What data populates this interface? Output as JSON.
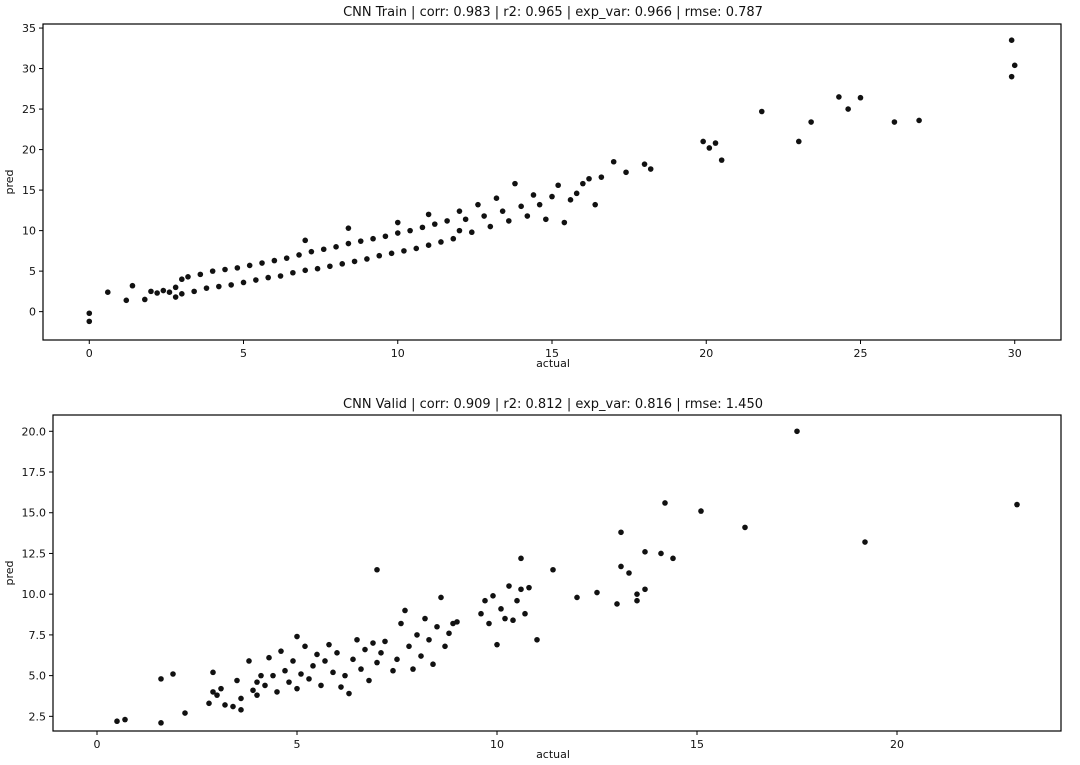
{
  "chart_data": [
    {
      "type": "scatter",
      "title": "CNN Train | corr: 0.983 | r2: 0.965 | exp_var: 0.966 | rmse: 0.787",
      "xlabel": "actual",
      "ylabel": "pred",
      "xlim": [
        -1.5,
        31.5
      ],
      "ylim": [
        -3.5,
        35.5
      ],
      "xticks": [
        0,
        5,
        10,
        15,
        20,
        25,
        30
      ],
      "yticks": [
        0,
        5,
        10,
        15,
        20,
        25,
        30,
        35
      ],
      "ytick_format": 0,
      "grid": false,
      "points": [
        [
          0,
          -1.2
        ],
        [
          0,
          -0.2
        ],
        [
          0.6,
          2.4
        ],
        [
          1.2,
          1.4
        ],
        [
          1.4,
          3.2
        ],
        [
          1.8,
          1.5
        ],
        [
          2.0,
          2.5
        ],
        [
          2.2,
          2.3
        ],
        [
          2.4,
          2.6
        ],
        [
          2.6,
          2.4
        ],
        [
          2.8,
          1.8
        ],
        [
          2.8,
          3.0
        ],
        [
          3.0,
          4.0
        ],
        [
          3.2,
          4.3
        ],
        [
          3.0,
          2.2
        ],
        [
          3.4,
          2.5
        ],
        [
          3.6,
          4.6
        ],
        [
          3.8,
          2.9
        ],
        [
          4.0,
          5.0
        ],
        [
          4.2,
          3.1
        ],
        [
          4.4,
          5.2
        ],
        [
          4.6,
          3.3
        ],
        [
          4.8,
          5.4
        ],
        [
          5.0,
          3.6
        ],
        [
          5.2,
          5.7
        ],
        [
          5.4,
          3.9
        ],
        [
          5.6,
          6.0
        ],
        [
          5.8,
          4.2
        ],
        [
          6.0,
          6.3
        ],
        [
          6.2,
          4.4
        ],
        [
          6.4,
          6.6
        ],
        [
          6.6,
          4.8
        ],
        [
          6.8,
          7.0
        ],
        [
          7.0,
          5.1
        ],
        [
          7.2,
          7.4
        ],
        [
          7.0,
          8.8
        ],
        [
          7.4,
          5.3
        ],
        [
          7.6,
          7.7
        ],
        [
          7.8,
          5.6
        ],
        [
          8.0,
          8.0
        ],
        [
          8.2,
          5.9
        ],
        [
          8.4,
          8.4
        ],
        [
          8.6,
          6.2
        ],
        [
          8.4,
          10.3
        ],
        [
          8.8,
          8.7
        ],
        [
          9.0,
          6.5
        ],
        [
          9.2,
          9.0
        ],
        [
          9.4,
          6.9
        ],
        [
          9.6,
          9.3
        ],
        [
          9.8,
          7.2
        ],
        [
          10.0,
          9.7
        ],
        [
          10.0,
          11.0
        ],
        [
          10.2,
          7.5
        ],
        [
          10.4,
          10.0
        ],
        [
          10.6,
          7.8
        ],
        [
          10.8,
          10.4
        ],
        [
          11.0,
          8.2
        ],
        [
          11.0,
          12.0
        ],
        [
          11.2,
          10.8
        ],
        [
          11.4,
          8.6
        ],
        [
          11.6,
          11.2
        ],
        [
          11.8,
          9.0
        ],
        [
          12.0,
          12.4
        ],
        [
          12.0,
          10.0
        ],
        [
          12.2,
          11.4
        ],
        [
          12.4,
          9.8
        ],
        [
          12.6,
          13.2
        ],
        [
          12.8,
          11.8
        ],
        [
          13.0,
          10.5
        ],
        [
          13.2,
          14.0
        ],
        [
          13.4,
          12.4
        ],
        [
          13.6,
          11.2
        ],
        [
          13.8,
          15.8
        ],
        [
          14.0,
          13.0
        ],
        [
          14.2,
          11.8
        ],
        [
          14.4,
          14.4
        ],
        [
          14.6,
          13.2
        ],
        [
          14.8,
          11.4
        ],
        [
          15.0,
          14.2
        ],
        [
          15.2,
          15.6
        ],
        [
          15.4,
          11.0
        ],
        [
          15.6,
          13.8
        ],
        [
          15.8,
          14.6
        ],
        [
          16.0,
          15.8
        ],
        [
          16.2,
          16.4
        ],
        [
          16.4,
          13.2
        ],
        [
          16.6,
          16.6
        ],
        [
          17.0,
          18.5
        ],
        [
          17.4,
          17.2
        ],
        [
          18.0,
          18.2
        ],
        [
          18.2,
          17.6
        ],
        [
          19.9,
          21.0
        ],
        [
          20.1,
          20.2
        ],
        [
          20.3,
          20.8
        ],
        [
          20.5,
          18.7
        ],
        [
          21.8,
          24.7
        ],
        [
          23.0,
          21.0
        ],
        [
          23.4,
          23.4
        ],
        [
          24.3,
          26.5
        ],
        [
          24.6,
          25.0
        ],
        [
          25.0,
          26.4
        ],
        [
          26.1,
          23.4
        ],
        [
          26.9,
          23.6
        ],
        [
          29.9,
          29.0
        ],
        [
          30.0,
          30.4
        ],
        [
          29.9,
          33.5
        ]
      ]
    },
    {
      "type": "scatter",
      "title": "CNN Valid | corr: 0.909 | r2: 0.812 | exp_var: 0.816 | rmse: 1.450",
      "xlabel": "actual",
      "ylabel": "pred",
      "xlim": [
        -1.1,
        24.1
      ],
      "ylim": [
        1.6,
        21.0
      ],
      "xticks": [
        0,
        5,
        10,
        15,
        20
      ],
      "yticks": [
        2.5,
        5.0,
        7.5,
        10.0,
        12.5,
        15.0,
        17.5,
        20.0
      ],
      "ytick_format": 1,
      "grid": false,
      "points": [
        [
          0.5,
          2.2
        ],
        [
          0.7,
          2.3
        ],
        [
          1.6,
          2.1
        ],
        [
          1.6,
          4.8
        ],
        [
          1.9,
          5.1
        ],
        [
          2.2,
          2.7
        ],
        [
          2.8,
          3.3
        ],
        [
          2.9,
          4.0
        ],
        [
          2.9,
          5.2
        ],
        [
          3.0,
          3.8
        ],
        [
          3.1,
          4.2
        ],
        [
          3.2,
          3.2
        ],
        [
          3.4,
          3.1
        ],
        [
          3.5,
          4.7
        ],
        [
          3.6,
          3.6
        ],
        [
          3.6,
          2.9
        ],
        [
          3.8,
          5.9
        ],
        [
          3.9,
          4.1
        ],
        [
          4.0,
          4.6
        ],
        [
          4.0,
          3.8
        ],
        [
          4.1,
          5.0
        ],
        [
          4.2,
          4.4
        ],
        [
          4.3,
          6.1
        ],
        [
          4.4,
          5.0
        ],
        [
          4.5,
          4.0
        ],
        [
          4.6,
          6.5
        ],
        [
          4.7,
          5.3
        ],
        [
          4.8,
          4.6
        ],
        [
          4.9,
          5.9
        ],
        [
          5.0,
          4.2
        ],
        [
          5.0,
          7.4
        ],
        [
          5.1,
          5.1
        ],
        [
          5.2,
          6.8
        ],
        [
          5.3,
          4.8
        ],
        [
          5.4,
          5.6
        ],
        [
          5.5,
          6.3
        ],
        [
          5.6,
          4.4
        ],
        [
          5.7,
          5.9
        ],
        [
          5.8,
          6.9
        ],
        [
          5.9,
          5.2
        ],
        [
          6.0,
          6.4
        ],
        [
          6.1,
          4.3
        ],
        [
          6.2,
          5.0
        ],
        [
          6.3,
          3.9
        ],
        [
          6.4,
          6.0
        ],
        [
          6.5,
          7.2
        ],
        [
          6.6,
          5.4
        ],
        [
          6.7,
          6.6
        ],
        [
          6.8,
          4.7
        ],
        [
          6.9,
          7.0
        ],
        [
          7.0,
          11.5
        ],
        [
          7.0,
          5.8
        ],
        [
          7.1,
          6.4
        ],
        [
          7.2,
          7.1
        ],
        [
          7.4,
          5.3
        ],
        [
          7.5,
          6.0
        ],
        [
          7.6,
          8.2
        ],
        [
          7.7,
          9.0
        ],
        [
          7.8,
          6.8
        ],
        [
          7.9,
          5.4
        ],
        [
          8.0,
          7.5
        ],
        [
          8.1,
          6.2
        ],
        [
          8.2,
          8.5
        ],
        [
          8.3,
          7.2
        ],
        [
          8.4,
          5.7
        ],
        [
          8.5,
          8.0
        ],
        [
          8.6,
          9.8
        ],
        [
          8.7,
          6.8
        ],
        [
          8.8,
          7.6
        ],
        [
          8.9,
          8.2
        ],
        [
          9.0,
          8.3
        ],
        [
          9.6,
          8.8
        ],
        [
          9.7,
          9.6
        ],
        [
          9.8,
          8.2
        ],
        [
          9.9,
          9.9
        ],
        [
          10.0,
          6.9
        ],
        [
          10.1,
          9.1
        ],
        [
          10.2,
          8.5
        ],
        [
          10.3,
          10.5
        ],
        [
          10.4,
          8.4
        ],
        [
          10.5,
          9.6
        ],
        [
          10.6,
          10.3
        ],
        [
          10.6,
          12.2
        ],
        [
          10.7,
          8.8
        ],
        [
          10.8,
          10.4
        ],
        [
          11.0,
          7.2
        ],
        [
          11.4,
          11.5
        ],
        [
          12.0,
          9.8
        ],
        [
          12.5,
          10.1
        ],
        [
          13.0,
          9.4
        ],
        [
          13.1,
          11.7
        ],
        [
          13.1,
          13.8
        ],
        [
          13.3,
          11.3
        ],
        [
          13.5,
          9.6
        ],
        [
          13.5,
          10.0
        ],
        [
          13.7,
          12.6
        ],
        [
          13.7,
          10.3
        ],
        [
          14.1,
          12.5
        ],
        [
          14.2,
          15.6
        ],
        [
          14.4,
          12.2
        ],
        [
          15.1,
          15.1
        ],
        [
          16.2,
          14.1
        ],
        [
          17.5,
          20.0
        ],
        [
          19.2,
          13.2
        ],
        [
          23.0,
          15.5
        ]
      ]
    }
  ]
}
